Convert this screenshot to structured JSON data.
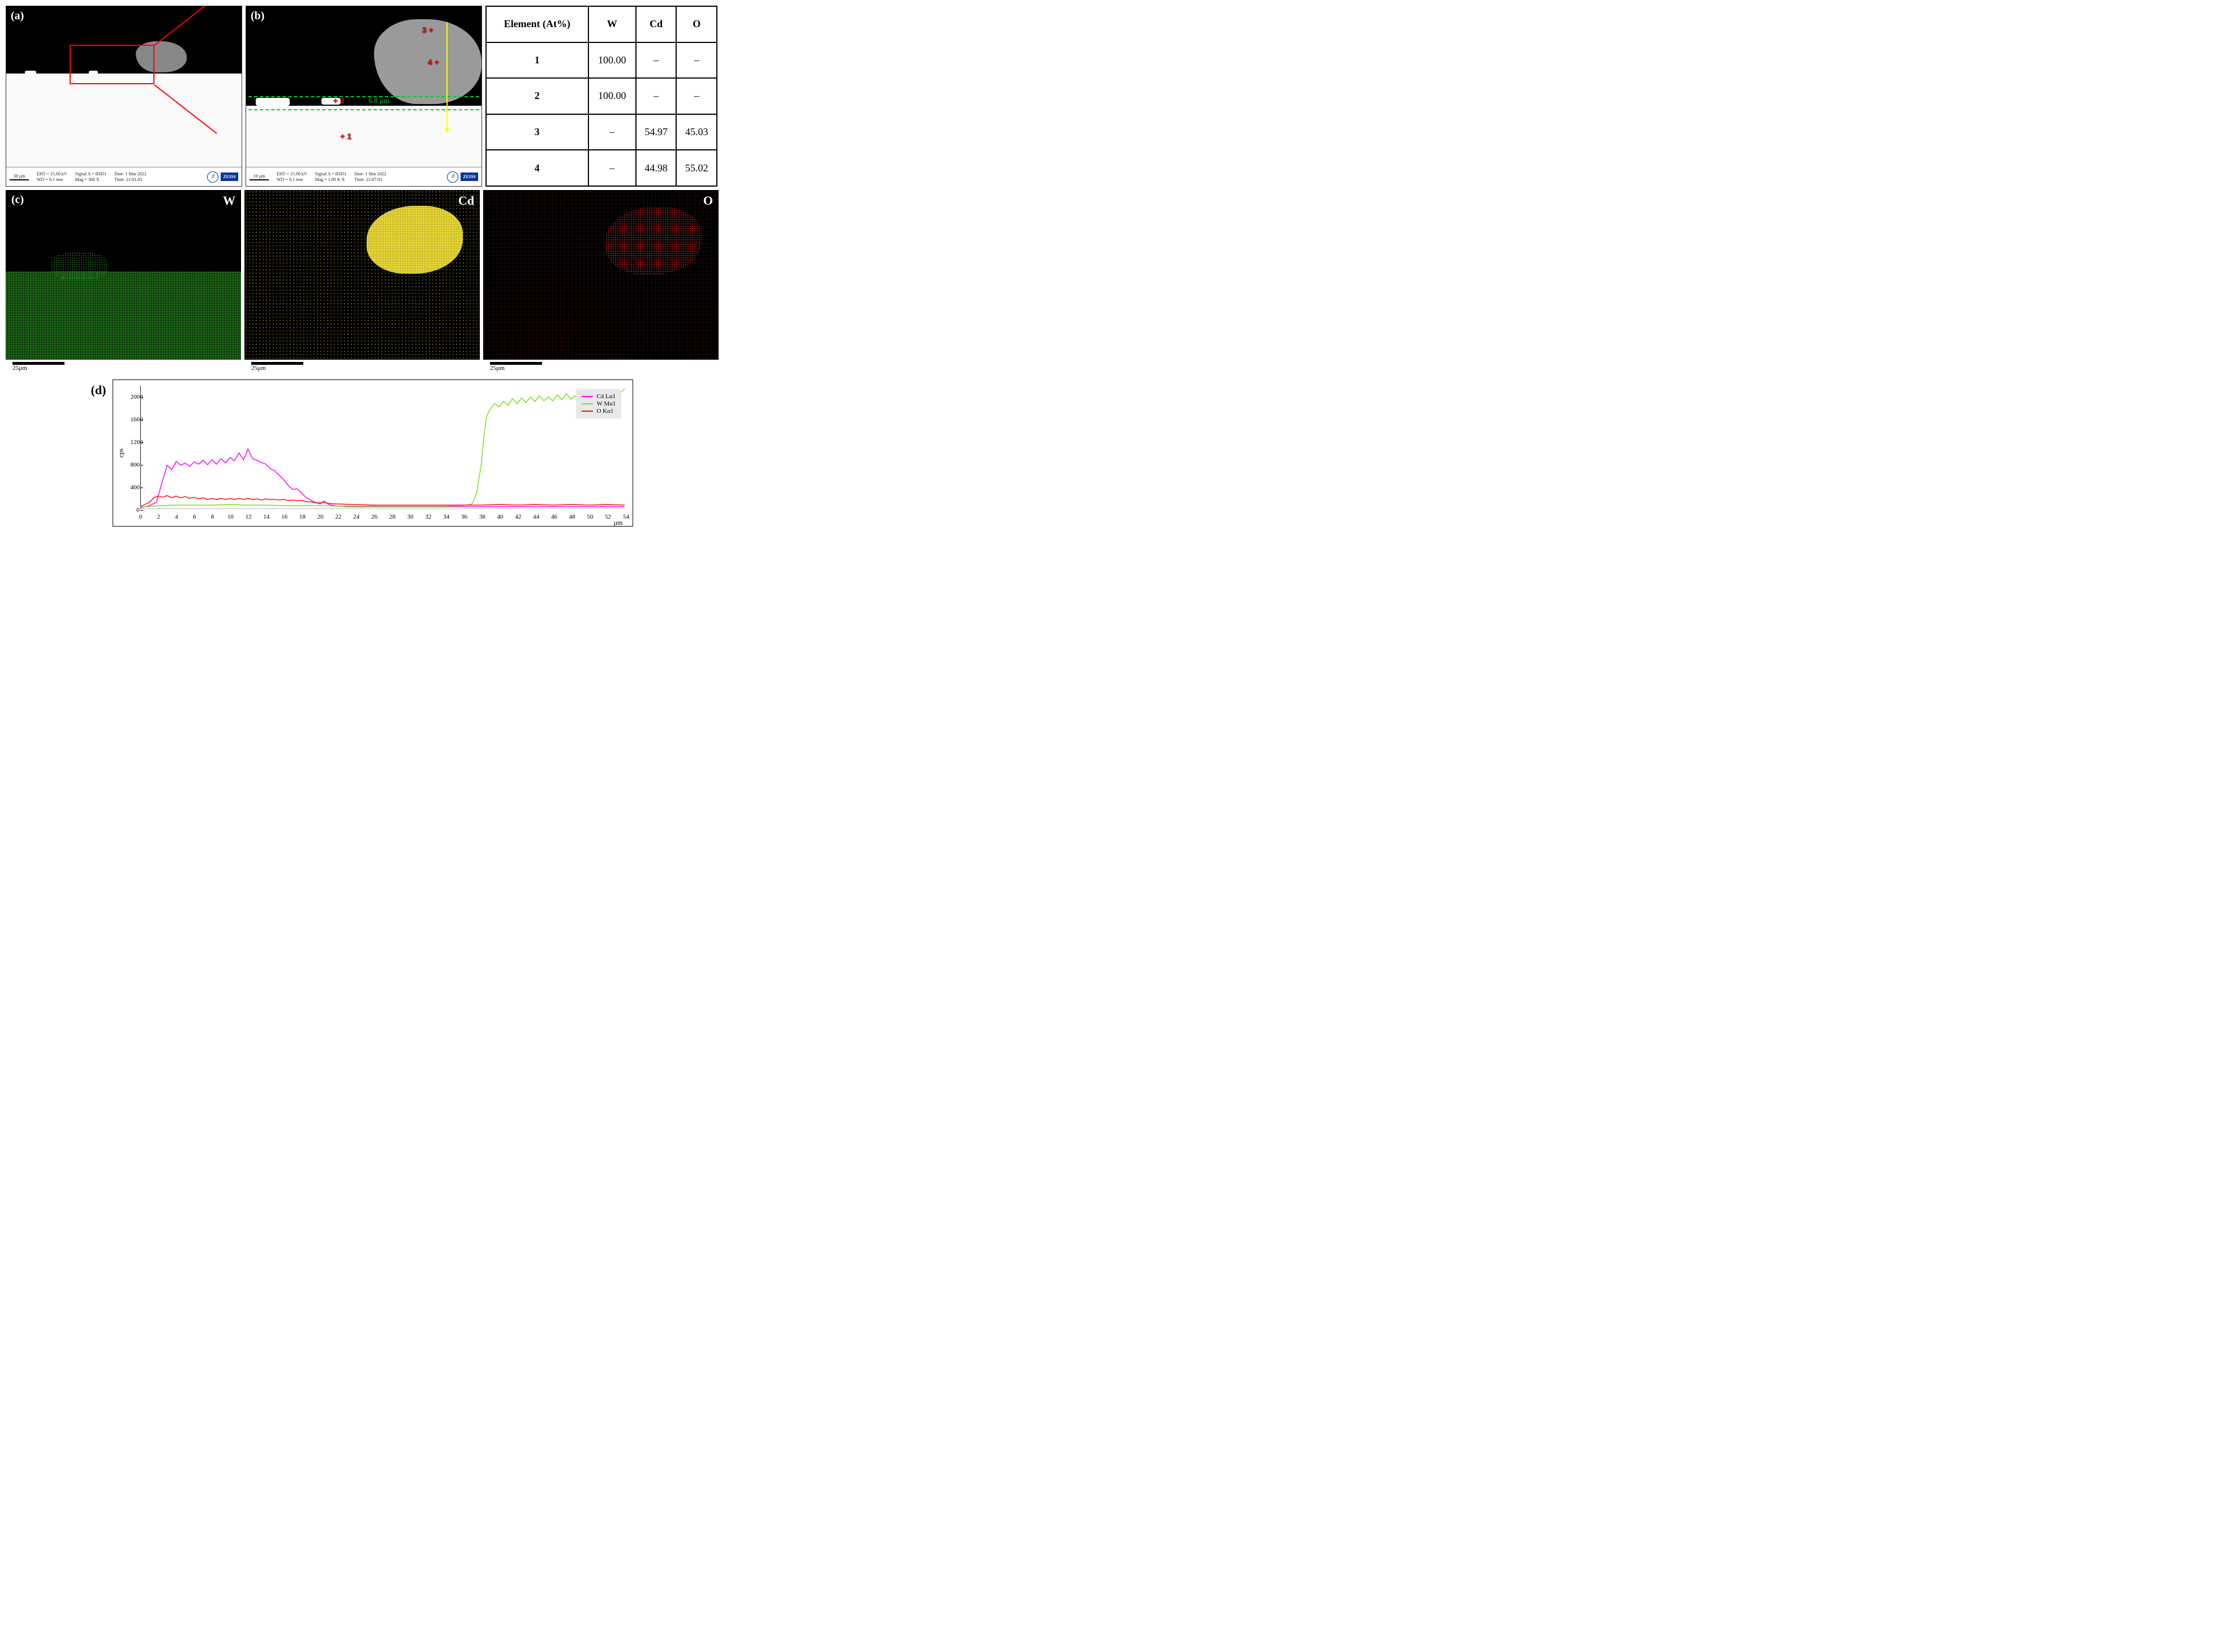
{
  "panels": {
    "a": {
      "label": "(a)"
    },
    "b": {
      "label": "(b)",
      "measurement": "6.8 µm",
      "points": {
        "p1": "+ 1",
        "p2": "+ 2",
        "p3": "3 +",
        "p4": "4 +"
      }
    },
    "c": {
      "label": "(c)"
    },
    "d": {
      "label": "(d)"
    }
  },
  "sem_info": {
    "a": {
      "scale": "30 µm",
      "eht": "EHT = 15.00 kV",
      "wd": "WD = 9.1 mm",
      "signal": "Signal A = BSD1",
      "mag": "Mag = 300 X",
      "date": "Date: 1 Mar 2022",
      "time": "Time: 21:01:02",
      "brand": "ZEISS"
    },
    "b": {
      "scale": "10 µm",
      "eht": "EHT = 15.00 kV",
      "wd": "WD = 9.1 mm",
      "signal": "Signal A = BSD1",
      "mag": "Mag = 1.00 K X",
      "date": "Date: 1 Mar 2022",
      "time": "Time: 21:07:03",
      "brand": "ZEISS"
    }
  },
  "eds_table": {
    "header": {
      "el": "Element (At%)",
      "w": "W",
      "cd": "Cd",
      "o": "O"
    },
    "rows": [
      {
        "pt": "1",
        "w": "100.00",
        "cd": "–",
        "o": "–"
      },
      {
        "pt": "2",
        "w": "100.00",
        "cd": "–",
        "o": "–"
      },
      {
        "pt": "3",
        "w": "–",
        "cd": "54.97",
        "o": "45.03"
      },
      {
        "pt": "4",
        "w": "–",
        "cd": "44.98",
        "o": "55.02"
      }
    ]
  },
  "maps": {
    "w": {
      "label": "W",
      "scale": "25µm",
      "dot_color": "#34c22b"
    },
    "cd": {
      "label": "Cd",
      "scale": "25µm",
      "dot_color": "#e3d233"
    },
    "o": {
      "label": "O",
      "scale": "25µm",
      "dot_color": "#d42222"
    }
  },
  "linescan": {
    "type": "line",
    "ylabel": "cps",
    "xlabel": "µm",
    "xlim": [
      0,
      54
    ],
    "ylim": [
      0,
      2200
    ],
    "yticks": [
      0,
      400,
      800,
      1200,
      1600,
      2000
    ],
    "xticks": [
      0,
      2,
      4,
      6,
      8,
      10,
      12,
      14,
      16,
      18,
      20,
      22,
      24,
      26,
      28,
      30,
      32,
      34,
      36,
      38,
      40,
      42,
      44,
      46,
      48,
      50,
      52,
      54
    ],
    "background_color": "#ffffff",
    "legend_position": "top-right",
    "legend_bg": "#e8e8e8",
    "line_width": 1.5,
    "series": [
      {
        "name": "Cd Lα1",
        "color": "#ff00ff",
        "data": [
          [
            0,
            20
          ],
          [
            1,
            60
          ],
          [
            1.8,
            120
          ],
          [
            2.5,
            520
          ],
          [
            3,
            780
          ],
          [
            3.5,
            700
          ],
          [
            4,
            850
          ],
          [
            4.5,
            780
          ],
          [
            5,
            820
          ],
          [
            5.5,
            760
          ],
          [
            6,
            840
          ],
          [
            6.5,
            800
          ],
          [
            7,
            870
          ],
          [
            7.5,
            790
          ],
          [
            8,
            880
          ],
          [
            8.5,
            800
          ],
          [
            9,
            900
          ],
          [
            9.5,
            820
          ],
          [
            10,
            920
          ],
          [
            10.5,
            860
          ],
          [
            11,
            1000
          ],
          [
            11.5,
            880
          ],
          [
            12,
            1070
          ],
          [
            12.5,
            900
          ],
          [
            13,
            870
          ],
          [
            13.5,
            830
          ],
          [
            14,
            800
          ],
          [
            14.5,
            720
          ],
          [
            15,
            680
          ],
          [
            15.5,
            600
          ],
          [
            16,
            520
          ],
          [
            16.5,
            420
          ],
          [
            17,
            350
          ],
          [
            17.5,
            360
          ],
          [
            18,
            280
          ],
          [
            18.5,
            200
          ],
          [
            19,
            160
          ],
          [
            19.5,
            120
          ],
          [
            20,
            90
          ],
          [
            20.5,
            140
          ],
          [
            21,
            80
          ],
          [
            22,
            50
          ],
          [
            23,
            40
          ],
          [
            25,
            40
          ],
          [
            28,
            40
          ],
          [
            32,
            40
          ],
          [
            36,
            40
          ],
          [
            40,
            40
          ],
          [
            44,
            40
          ],
          [
            48,
            40
          ],
          [
            52,
            40
          ],
          [
            54,
            40
          ]
        ]
      },
      {
        "name": "W Mα1",
        "color": "#7bdd1e",
        "data": [
          [
            0,
            30
          ],
          [
            2,
            60
          ],
          [
            4,
            70
          ],
          [
            6,
            70
          ],
          [
            8,
            70
          ],
          [
            10,
            80
          ],
          [
            12,
            70
          ],
          [
            14,
            70
          ],
          [
            16,
            60
          ],
          [
            18,
            60
          ],
          [
            20,
            60
          ],
          [
            22,
            50
          ],
          [
            24,
            50
          ],
          [
            26,
            50
          ],
          [
            28,
            50
          ],
          [
            30,
            50
          ],
          [
            32,
            50
          ],
          [
            34,
            50
          ],
          [
            36,
            60
          ],
          [
            37,
            90
          ],
          [
            37.5,
            280
          ],
          [
            38,
            780
          ],
          [
            38.3,
            1280
          ],
          [
            38.6,
            1650
          ],
          [
            39,
            1780
          ],
          [
            39.5,
            1880
          ],
          [
            40,
            1820
          ],
          [
            40.5,
            1920
          ],
          [
            41,
            1850
          ],
          [
            41.5,
            1970
          ],
          [
            42,
            1880
          ],
          [
            42.5,
            1980
          ],
          [
            43,
            1900
          ],
          [
            43.5,
            2000
          ],
          [
            44,
            1920
          ],
          [
            44.5,
            2020
          ],
          [
            45,
            1930
          ],
          [
            45.5,
            2000
          ],
          [
            46,
            1930
          ],
          [
            46.5,
            2040
          ],
          [
            47,
            1950
          ],
          [
            47.5,
            2060
          ],
          [
            48,
            1960
          ],
          [
            48.5,
            2020
          ],
          [
            49,
            1940
          ],
          [
            49.5,
            2080
          ],
          [
            50,
            1960
          ],
          [
            50.5,
            2100
          ],
          [
            51,
            1970
          ],
          [
            51.5,
            2040
          ],
          [
            52,
            1960
          ],
          [
            52.5,
            2120
          ],
          [
            53,
            1980
          ],
          [
            53.5,
            2060
          ],
          [
            54,
            2150
          ]
        ]
      },
      {
        "name": "O Kα1",
        "color": "#ff1010",
        "data": [
          [
            0,
            40
          ],
          [
            1,
            120
          ],
          [
            1.5,
            200
          ],
          [
            2,
            230
          ],
          [
            2.5,
            210
          ],
          [
            3,
            240
          ],
          [
            3.5,
            200
          ],
          [
            4,
            230
          ],
          [
            4.5,
            200
          ],
          [
            5,
            220
          ],
          [
            5.5,
            190
          ],
          [
            6,
            210
          ],
          [
            6.5,
            180
          ],
          [
            7,
            200
          ],
          [
            7.5,
            170
          ],
          [
            8,
            190
          ],
          [
            8.5,
            170
          ],
          [
            9,
            190
          ],
          [
            9.5,
            170
          ],
          [
            10,
            190
          ],
          [
            10.5,
            170
          ],
          [
            11,
            190
          ],
          [
            11.5,
            170
          ],
          [
            12,
            190
          ],
          [
            12.5,
            170
          ],
          [
            13,
            180
          ],
          [
            13.5,
            160
          ],
          [
            14,
            180
          ],
          [
            14.5,
            170
          ],
          [
            15,
            170
          ],
          [
            15.5,
            160
          ],
          [
            16,
            170
          ],
          [
            16.5,
            150
          ],
          [
            17,
            160
          ],
          [
            17.5,
            150
          ],
          [
            18,
            150
          ],
          [
            18.5,
            130
          ],
          [
            19,
            130
          ],
          [
            19.5,
            110
          ],
          [
            20,
            110
          ],
          [
            20.5,
            120
          ],
          [
            21,
            100
          ],
          [
            22,
            90
          ],
          [
            24,
            80
          ],
          [
            26,
            70
          ],
          [
            28,
            70
          ],
          [
            30,
            70
          ],
          [
            32,
            70
          ],
          [
            34,
            70
          ],
          [
            36,
            70
          ],
          [
            38,
            70
          ],
          [
            40,
            80
          ],
          [
            42,
            70
          ],
          [
            44,
            80
          ],
          [
            46,
            70
          ],
          [
            48,
            80
          ],
          [
            50,
            70
          ],
          [
            52,
            80
          ],
          [
            54,
            70
          ]
        ]
      }
    ]
  }
}
